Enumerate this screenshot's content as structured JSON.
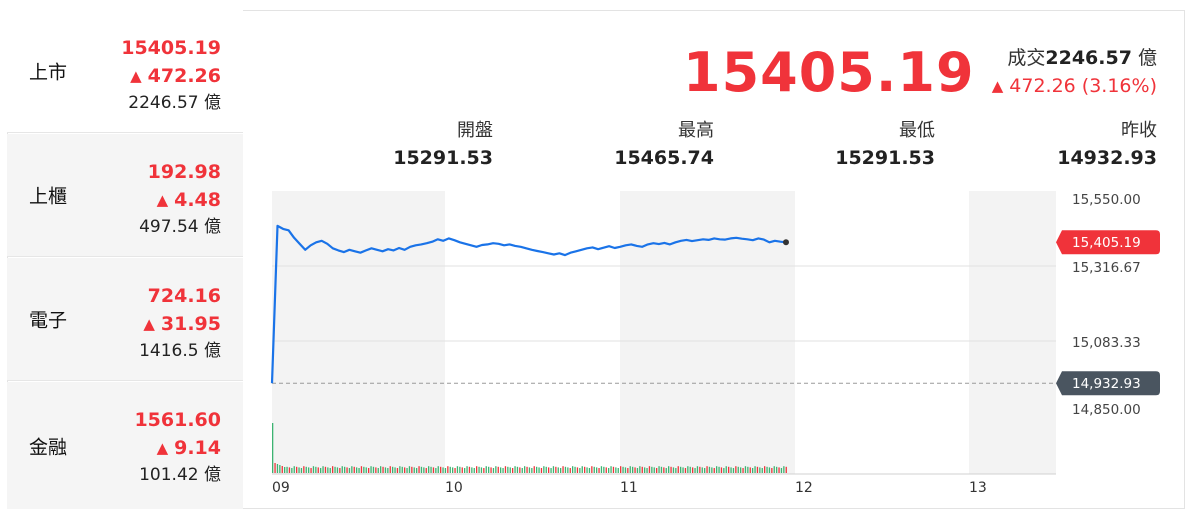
{
  "sidebar": {
    "items": [
      {
        "name": "上市",
        "price": "15405.19",
        "change": "472.26",
        "volume": "2246.57 億"
      },
      {
        "name": "上櫃",
        "price": "192.98",
        "change": "4.48",
        "volume": "497.54 億"
      },
      {
        "name": "電子",
        "price": "724.16",
        "change": "31.95",
        "volume": "1416.5 億"
      },
      {
        "name": "金融",
        "price": "1561.60",
        "change": "9.14",
        "volume": "101.42 億"
      }
    ]
  },
  "quote": {
    "price": "15405.19",
    "volume_label": "成交",
    "volume_value": "2246.57",
    "volume_unit": "億",
    "change": "472.26 (3.16%)",
    "stats": [
      {
        "label": "開盤",
        "value": "15291.53"
      },
      {
        "label": "最高",
        "value": "15465.74"
      },
      {
        "label": "最低",
        "value": "15291.53"
      },
      {
        "label": "昨收",
        "value": "14932.93"
      }
    ]
  },
  "colors": {
    "up": "#f0333a",
    "line": "#1a73e8",
    "prev_close_tag": "#4a5560"
  },
  "chart_data": {
    "type": "line",
    "x_ticks": [
      "09",
      "10",
      "11",
      "12",
      "13"
    ],
    "y_ticks": [
      "15,550.00",
      "15,316.67",
      "15,083.33",
      "14,850.00"
    ],
    "ylim": [
      14850,
      15550
    ],
    "current_label": "15,405.19",
    "prev_close_label": "14,932.93",
    "prev_close": 14932.93,
    "current": 15405.19,
    "series": [
      {
        "values": [
          14932.93,
          15460,
          15450,
          15445,
          15420,
          15400,
          15380,
          15395,
          15405,
          15410,
          15400,
          15385,
          15378,
          15372,
          15380,
          15375,
          15370,
          15378,
          15385,
          15380,
          15375,
          15382,
          15378,
          15386,
          15380,
          15390,
          15395,
          15398,
          15402,
          15407,
          15415,
          15410,
          15418,
          15412,
          15405,
          15400,
          15395,
          15390,
          15396,
          15398,
          15402,
          15400,
          15395,
          15398,
          15393,
          15390,
          15385,
          15380,
          15376,
          15372,
          15368,
          15364,
          15368,
          15362,
          15370,
          15375,
          15380,
          15385,
          15388,
          15382,
          15387,
          15392,
          15386,
          15390,
          15395,
          15398,
          15393,
          15390,
          15398,
          15402,
          15399,
          15403,
          15398,
          15405,
          15410,
          15413,
          15409,
          15412,
          15415,
          15413,
          15418,
          15415,
          15414,
          15418,
          15420,
          15417,
          15415,
          15412,
          15418,
          15414,
          15405,
          15410,
          15407,
          15405
        ]
      }
    ]
  }
}
